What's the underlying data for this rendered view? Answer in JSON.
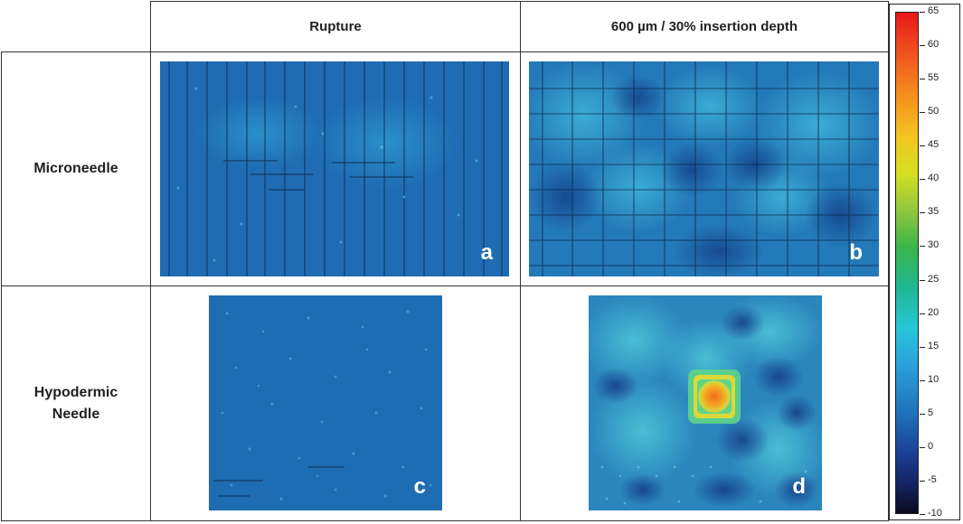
{
  "headers": {
    "col1": "Rupture",
    "col2": "600 µm / 30% insertion depth"
  },
  "rows": {
    "row1": "Microneedle",
    "row2_line1": "Hypodermic",
    "row2_line2": "Needle"
  },
  "panels": {
    "a": "a",
    "b": "b",
    "c": "c",
    "d": "d"
  },
  "colorbar": {
    "min": -10,
    "max": 65,
    "ticks": [
      "65",
      "60",
      "55",
      "50",
      "45",
      "40",
      "35",
      "30",
      "25",
      "20",
      "15",
      "10",
      "5",
      "0",
      "-5",
      "-10"
    ]
  },
  "colors": {
    "base_blue": "#1f6db3",
    "text": "#222222"
  }
}
